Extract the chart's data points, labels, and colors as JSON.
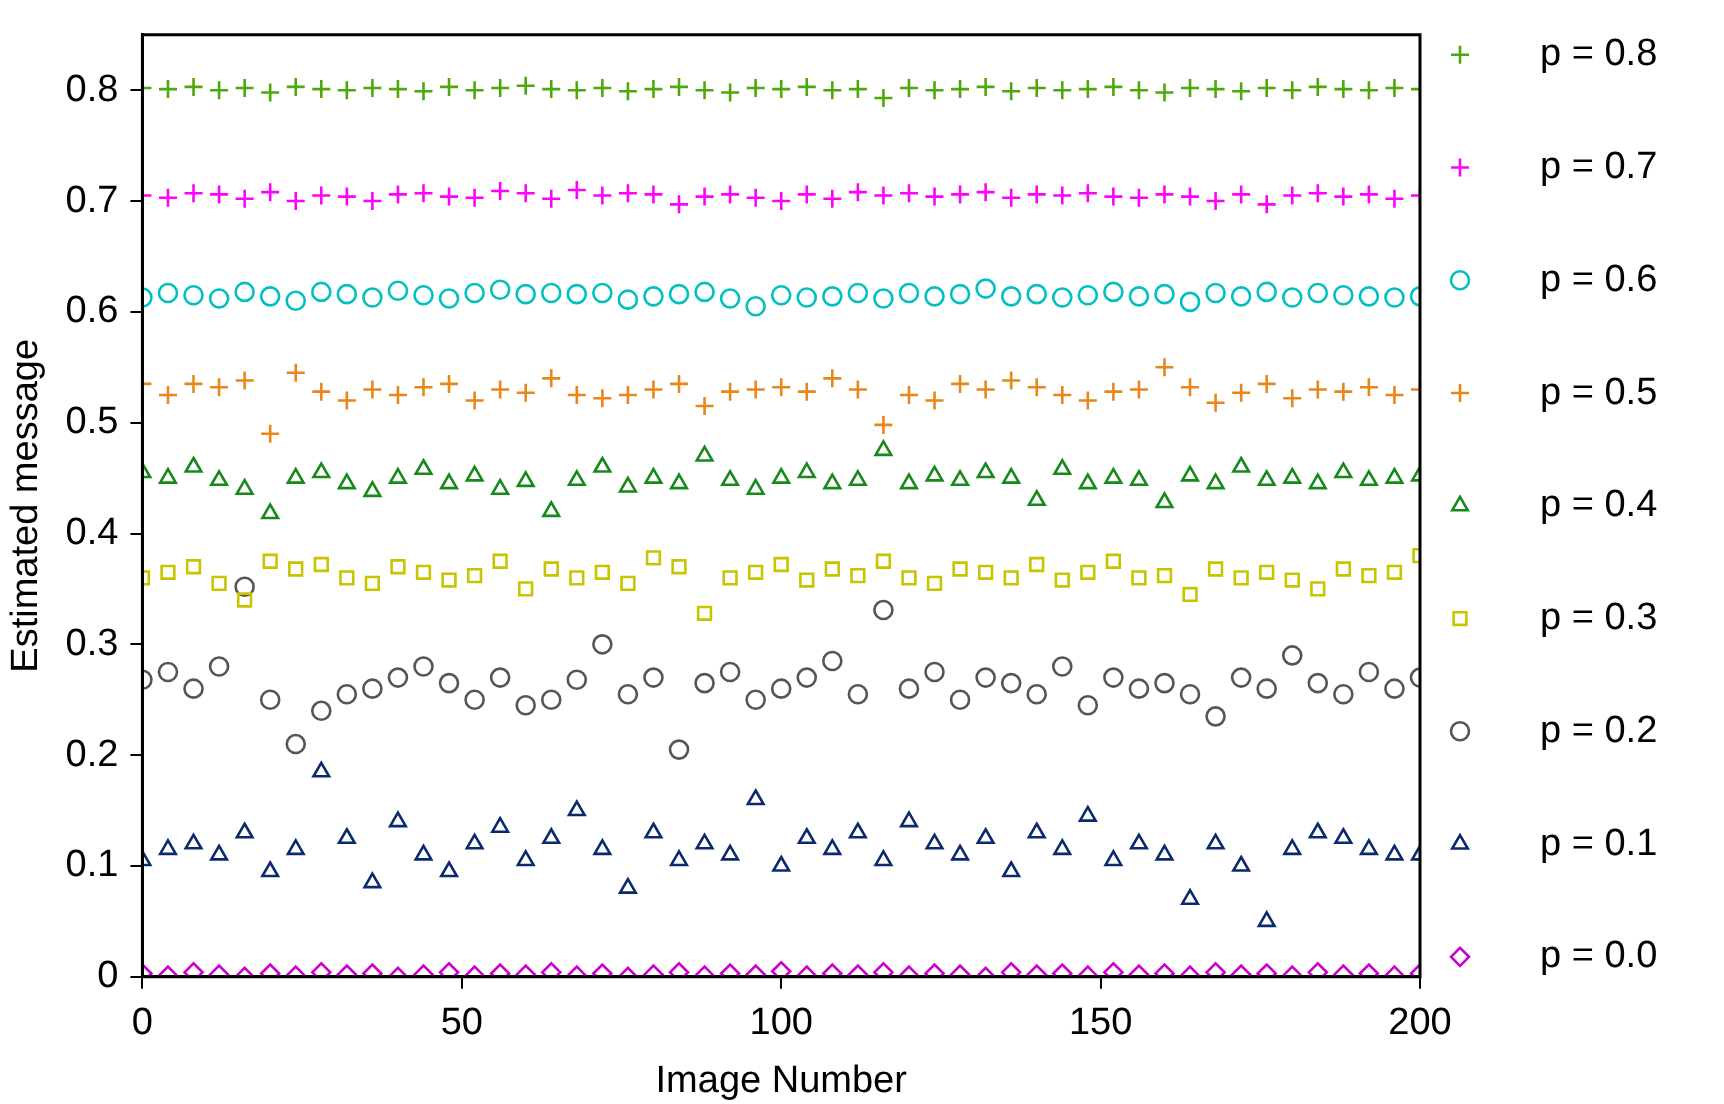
{
  "chart_data": {
    "type": "scatter",
    "xlabel": "Image Number",
    "ylabel": "Estimated message",
    "xlim": [
      0,
      200
    ],
    "xticks": [
      0,
      50,
      100,
      150,
      200
    ],
    "ylim": [
      0,
      0.85
    ],
    "yticks": [
      0,
      0.1,
      0.2,
      0.3,
      0.4,
      0.5,
      0.6,
      0.7,
      0.8
    ],
    "grid": false,
    "legend": "right",
    "x": [
      0,
      4,
      8,
      12,
      16,
      20,
      24,
      28,
      32,
      36,
      40,
      44,
      48,
      52,
      56,
      60,
      64,
      68,
      72,
      76,
      80,
      84,
      88,
      92,
      96,
      100,
      104,
      108,
      112,
      116,
      120,
      124,
      128,
      132,
      136,
      140,
      144,
      148,
      152,
      156,
      160,
      164,
      168,
      172,
      176,
      180,
      184,
      188,
      192,
      196,
      200
    ],
    "series": [
      {
        "name": "p = 0.8",
        "color": "#4ea80a",
        "marker": "cross",
        "values": [
          0.802,
          0.801,
          0.803,
          0.8,
          0.802,
          0.798,
          0.803,
          0.801,
          0.8,
          0.802,
          0.801,
          0.799,
          0.803,
          0.8,
          0.802,
          0.804,
          0.801,
          0.8,
          0.802,
          0.799,
          0.801,
          0.803,
          0.8,
          0.798,
          0.802,
          0.801,
          0.803,
          0.8,
          0.801,
          0.793,
          0.802,
          0.8,
          0.801,
          0.803,
          0.799,
          0.802,
          0.8,
          0.801,
          0.803,
          0.8,
          0.798,
          0.802,
          0.801,
          0.799,
          0.802,
          0.8,
          0.803,
          0.801,
          0.8,
          0.802,
          0.801
        ]
      },
      {
        "name": "p = 0.7",
        "color": "#ff00ff",
        "marker": "cross",
        "values": [
          0.705,
          0.703,
          0.707,
          0.706,
          0.702,
          0.708,
          0.7,
          0.705,
          0.704,
          0.7,
          0.706,
          0.707,
          0.704,
          0.703,
          0.709,
          0.707,
          0.702,
          0.71,
          0.705,
          0.707,
          0.706,
          0.697,
          0.704,
          0.706,
          0.703,
          0.7,
          0.706,
          0.702,
          0.708,
          0.705,
          0.707,
          0.704,
          0.706,
          0.708,
          0.703,
          0.706,
          0.705,
          0.707,
          0.704,
          0.703,
          0.706,
          0.704,
          0.7,
          0.706,
          0.697,
          0.705,
          0.707,
          0.704,
          0.706,
          0.702,
          0.705
        ]
      },
      {
        "name": "p = 0.6",
        "color": "#00c0c0",
        "marker": "circle",
        "values": [
          0.613,
          0.617,
          0.615,
          0.612,
          0.618,
          0.614,
          0.61,
          0.618,
          0.616,
          0.613,
          0.619,
          0.615,
          0.612,
          0.617,
          0.62,
          0.616,
          0.617,
          0.616,
          0.617,
          0.611,
          0.614,
          0.616,
          0.618,
          0.612,
          0.605,
          0.615,
          0.613,
          0.614,
          0.617,
          0.612,
          0.617,
          0.614,
          0.616,
          0.621,
          0.614,
          0.616,
          0.613,
          0.615,
          0.618,
          0.614,
          0.616,
          0.609,
          0.617,
          0.614,
          0.618,
          0.613,
          0.617,
          0.615,
          0.614,
          0.613,
          0.614
        ]
      },
      {
        "name": "p = 0.5",
        "color": "#e8861a",
        "marker": "cross",
        "values": [
          0.535,
          0.525,
          0.535,
          0.532,
          0.538,
          0.49,
          0.545,
          0.528,
          0.52,
          0.53,
          0.525,
          0.532,
          0.535,
          0.52,
          0.53,
          0.527,
          0.54,
          0.525,
          0.522,
          0.525,
          0.53,
          0.535,
          0.515,
          0.528,
          0.53,
          0.532,
          0.528,
          0.54,
          0.53,
          0.498,
          0.525,
          0.52,
          0.535,
          0.53,
          0.538,
          0.532,
          0.525,
          0.52,
          0.528,
          0.53,
          0.55,
          0.532,
          0.518,
          0.527,
          0.535,
          0.522,
          0.53,
          0.528,
          0.532,
          0.525,
          0.53
        ]
      },
      {
        "name": "p = 0.4",
        "color": "#16891a",
        "marker": "triangle",
        "values": [
          0.455,
          0.45,
          0.46,
          0.448,
          0.44,
          0.418,
          0.45,
          0.455,
          0.445,
          0.438,
          0.45,
          0.458,
          0.445,
          0.452,
          0.44,
          0.447,
          0.42,
          0.448,
          0.46,
          0.442,
          0.45,
          0.445,
          0.47,
          0.448,
          0.44,
          0.45,
          0.455,
          0.445,
          0.448,
          0.475,
          0.445,
          0.452,
          0.448,
          0.455,
          0.45,
          0.43,
          0.458,
          0.445,
          0.45,
          0.448,
          0.428,
          0.452,
          0.445,
          0.46,
          0.448,
          0.45,
          0.445,
          0.455,
          0.448,
          0.45,
          0.452
        ]
      },
      {
        "name": "p = 0.3",
        "color": "#c8c400",
        "marker": "square",
        "values": [
          0.36,
          0.365,
          0.37,
          0.355,
          0.34,
          0.375,
          0.368,
          0.372,
          0.36,
          0.355,
          0.37,
          0.365,
          0.358,
          0.362,
          0.375,
          0.35,
          0.368,
          0.36,
          0.365,
          0.355,
          0.378,
          0.37,
          0.328,
          0.36,
          0.365,
          0.372,
          0.358,
          0.368,
          0.362,
          0.375,
          0.36,
          0.355,
          0.368,
          0.365,
          0.36,
          0.372,
          0.358,
          0.365,
          0.375,
          0.36,
          0.362,
          0.345,
          0.368,
          0.36,
          0.365,
          0.358,
          0.35,
          0.368,
          0.362,
          0.365,
          0.38
        ]
      },
      {
        "name": "p = 0.2",
        "color": "#555555",
        "marker": "circle",
        "values": [
          0.268,
          0.275,
          0.26,
          0.28,
          0.352,
          0.25,
          0.21,
          0.24,
          0.255,
          0.26,
          0.27,
          0.28,
          0.265,
          0.25,
          0.27,
          0.245,
          0.25,
          0.268,
          0.3,
          0.255,
          0.27,
          0.205,
          0.265,
          0.275,
          0.25,
          0.26,
          0.27,
          0.285,
          0.255,
          0.331,
          0.26,
          0.275,
          0.25,
          0.27,
          0.265,
          0.255,
          0.28,
          0.245,
          0.27,
          0.26,
          0.265,
          0.255,
          0.235,
          0.27,
          0.26,
          0.29,
          0.265,
          0.255,
          0.275,
          0.26,
          0.27
        ]
      },
      {
        "name": "p = 0.1",
        "color": "#0b2a6e",
        "marker": "triangle",
        "values": [
          0.105,
          0.115,
          0.12,
          0.11,
          0.13,
          0.095,
          0.115,
          0.185,
          0.125,
          0.085,
          0.14,
          0.11,
          0.095,
          0.12,
          0.135,
          0.105,
          0.125,
          0.15,
          0.115,
          0.08,
          0.13,
          0.105,
          0.12,
          0.11,
          0.16,
          0.1,
          0.125,
          0.115,
          0.13,
          0.105,
          0.14,
          0.12,
          0.11,
          0.125,
          0.095,
          0.13,
          0.115,
          0.145,
          0.105,
          0.12,
          0.11,
          0.07,
          0.12,
          0.1,
          0.05,
          0.115,
          0.13,
          0.125,
          0.115,
          0.11,
          0.11
        ]
      },
      {
        "name": "p = 0.0",
        "color": "#cc00cc",
        "marker": "diamond",
        "values": [
          0.003,
          0.001,
          0.004,
          0.002,
          0.0,
          0.003,
          0.001,
          0.004,
          0.002,
          0.003,
          0.0,
          0.002,
          0.004,
          0.001,
          0.003,
          0.002,
          0.004,
          0.001,
          0.003,
          0.0,
          0.002,
          0.004,
          0.001,
          0.003,
          0.002,
          0.005,
          0.001,
          0.003,
          0.002,
          0.004,
          0.001,
          0.003,
          0.002,
          0.0,
          0.004,
          0.002,
          0.003,
          0.001,
          0.004,
          0.002,
          0.003,
          0.001,
          0.004,
          0.002,
          0.003,
          0.001,
          0.004,
          0.002,
          0.003,
          0.001,
          0.003
        ]
      }
    ]
  }
}
